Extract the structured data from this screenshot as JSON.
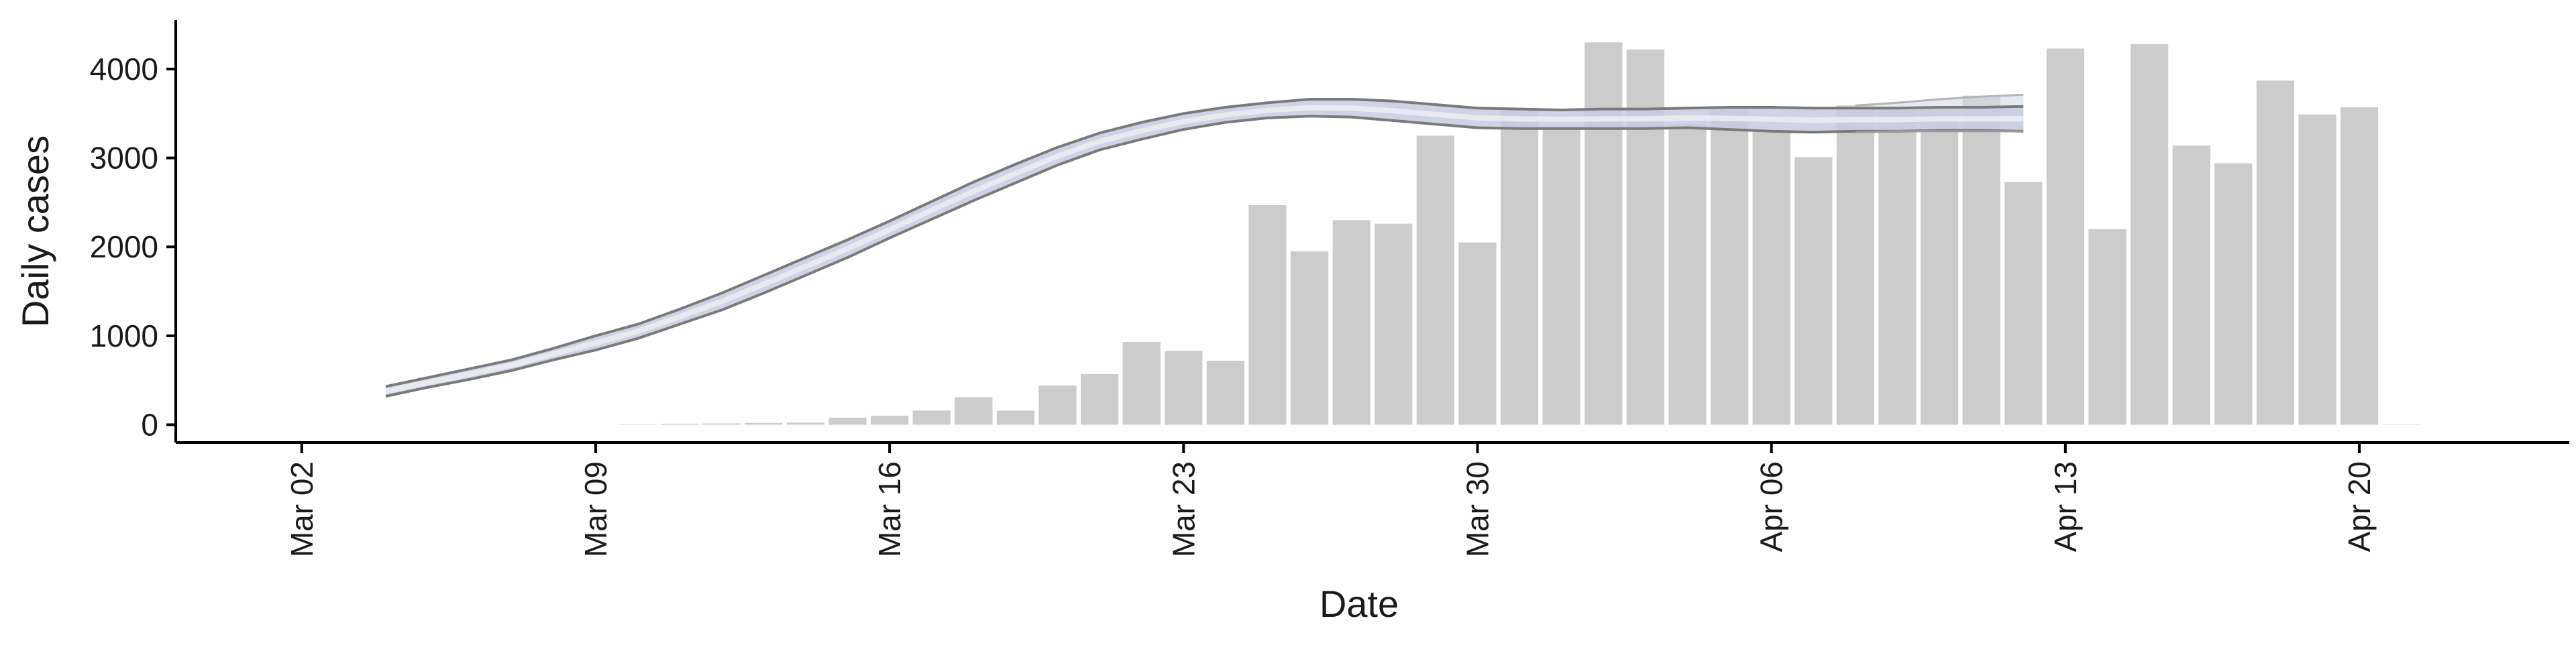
{
  "chart_data": {
    "type": "bar",
    "xlabel": "Date",
    "ylabel": "Daily cases",
    "ylim": [
      -200,
      4550
    ],
    "y_ticks": [
      0,
      1000,
      2000,
      3000,
      4000
    ],
    "x_ticks": [
      {
        "date": "2020-03-02",
        "label": "Mar 02"
      },
      {
        "date": "2020-03-09",
        "label": "Mar 09"
      },
      {
        "date": "2020-03-16",
        "label": "Mar 16"
      },
      {
        "date": "2020-03-23",
        "label": "Mar 23"
      },
      {
        "date": "2020-03-30",
        "label": "Mar 30"
      },
      {
        "date": "2020-04-06",
        "label": "Apr 06"
      },
      {
        "date": "2020-04-13",
        "label": "Apr 13"
      },
      {
        "date": "2020-04-20",
        "label": "Apr 20"
      }
    ],
    "x_range": [
      "2020-02-28",
      "2020-04-25"
    ],
    "grid": false,
    "colors": {
      "bars": "#cccccc",
      "band_fill": "#c5cbe0",
      "band_edge": "#7a7a7a",
      "band_future": "#d7dbe8",
      "axis": "#000000"
    },
    "bars": {
      "dates": [
        "2020-03-10",
        "2020-03-11",
        "2020-03-12",
        "2020-03-13",
        "2020-03-14",
        "2020-03-15",
        "2020-03-16",
        "2020-03-17",
        "2020-03-18",
        "2020-03-19",
        "2020-03-20",
        "2020-03-21",
        "2020-03-22",
        "2020-03-23",
        "2020-03-24",
        "2020-03-25",
        "2020-03-26",
        "2020-03-27",
        "2020-03-28",
        "2020-03-29",
        "2020-03-30",
        "2020-03-31",
        "2020-04-01",
        "2020-04-02",
        "2020-04-03",
        "2020-04-04",
        "2020-04-05",
        "2020-04-06",
        "2020-04-07",
        "2020-04-08",
        "2020-04-09",
        "2020-04-10",
        "2020-04-11",
        "2020-04-12",
        "2020-04-13",
        "2020-04-14",
        "2020-04-15",
        "2020-04-16",
        "2020-04-17",
        "2020-04-18",
        "2020-04-19",
        "2020-04-20",
        "2020-04-21"
      ],
      "values": [
        5,
        10,
        15,
        20,
        25,
        80,
        100,
        160,
        310,
        160,
        440,
        570,
        930,
        830,
        720,
        2470,
        1950,
        2300,
        2260,
        3250,
        2050,
        3550,
        3340,
        4300,
        4220,
        3380,
        3580,
        3310,
        3010,
        3590,
        3560,
        3560,
        3700,
        2730,
        4230,
        2200,
        4280,
        3140,
        2940,
        3870,
        3490,
        3570,
        0
      ]
    },
    "fitted": {
      "dates": [
        "2020-03-04",
        "2020-03-05",
        "2020-03-06",
        "2020-03-07",
        "2020-03-08",
        "2020-03-09",
        "2020-03-10",
        "2020-03-11",
        "2020-03-12",
        "2020-03-13",
        "2020-03-14",
        "2020-03-15",
        "2020-03-16",
        "2020-03-17",
        "2020-03-18",
        "2020-03-19",
        "2020-03-20",
        "2020-03-21",
        "2020-03-22",
        "2020-03-23",
        "2020-03-24",
        "2020-03-25",
        "2020-03-26",
        "2020-03-27",
        "2020-03-28",
        "2020-03-29",
        "2020-03-30",
        "2020-03-31",
        "2020-04-01",
        "2020-04-02",
        "2020-04-03",
        "2020-04-04",
        "2020-04-05",
        "2020-04-06",
        "2020-04-07",
        "2020-04-08",
        "2020-04-09",
        "2020-04-10",
        "2020-04-11",
        "2020-04-12"
      ],
      "upper": [
        430,
        530,
        630,
        730,
        860,
        1000,
        1130,
        1300,
        1480,
        1680,
        1880,
        2080,
        2290,
        2510,
        2730,
        2930,
        3120,
        3280,
        3400,
        3500,
        3570,
        3620,
        3660,
        3660,
        3640,
        3600,
        3560,
        3550,
        3540,
        3550,
        3550,
        3560,
        3570,
        3570,
        3560,
        3560,
        3560,
        3570,
        3570,
        3580
      ],
      "lower": [
        320,
        420,
        510,
        610,
        730,
        840,
        970,
        1130,
        1290,
        1480,
        1680,
        1880,
        2100,
        2310,
        2520,
        2720,
        2920,
        3090,
        3210,
        3320,
        3400,
        3450,
        3470,
        3460,
        3420,
        3380,
        3340,
        3330,
        3330,
        3330,
        3330,
        3340,
        3320,
        3300,
        3290,
        3300,
        3300,
        3310,
        3310,
        3300
      ],
      "future_upper": [
        3590,
        3620,
        3660,
        3690,
        3710
      ],
      "future_lower": [
        3290,
        3300,
        3300,
        3300,
        3300
      ],
      "future_dates": [
        "2020-04-08",
        "2020-04-09",
        "2020-04-10",
        "2020-04-11",
        "2020-04-12"
      ]
    }
  }
}
